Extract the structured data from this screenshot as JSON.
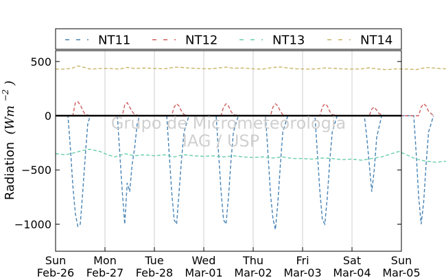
{
  "chart_data": {
    "type": "line",
    "title": "",
    "xlabel": "",
    "ylabel": "Radiation",
    "ylabel_unit_base": "(Wm",
    "ylabel_unit_exp": "−2",
    "ylabel_unit_close": ")",
    "ylim": [
      -1250,
      600
    ],
    "xlim_days": [
      0,
      7
    ],
    "y_ticks": [
      {
        "value": 500,
        "label": "500"
      },
      {
        "value": 0,
        "label": "0"
      },
      {
        "value": -500,
        "label": "−500"
      },
      {
        "value": -1000,
        "label": "−1000"
      }
    ],
    "x_ticks": [
      {
        "day": 0,
        "weekday": "Sun",
        "date": "Feb-26"
      },
      {
        "day": 1,
        "weekday": "Mon",
        "date": "Feb-27"
      },
      {
        "day": 2,
        "weekday": "Tue",
        "date": "Feb-28"
      },
      {
        "day": 3,
        "weekday": "Wed",
        "date": "Mar-01"
      },
      {
        "day": 4,
        "weekday": "Thu",
        "date": "Mar-02"
      },
      {
        "day": 5,
        "weekday": "Fri",
        "date": "Mar-03"
      },
      {
        "day": 6,
        "weekday": "Sat",
        "date": "Mar-04"
      },
      {
        "day": 7,
        "weekday": "Sun",
        "date": "Mar-05"
      }
    ],
    "grid": "vertical",
    "zero_line": true,
    "legend_position": "top",
    "series": [
      {
        "name": "NT11",
        "color": "#4682b4",
        "points": [
          [
            0.0,
            0
          ],
          [
            0.25,
            0
          ],
          [
            0.3,
            -300
          ],
          [
            0.35,
            -650
          ],
          [
            0.4,
            -900
          ],
          [
            0.45,
            -1020
          ],
          [
            0.5,
            -1000
          ],
          [
            0.55,
            -700
          ],
          [
            0.6,
            -380
          ],
          [
            0.65,
            -80
          ],
          [
            0.7,
            0
          ],
          [
            1.0,
            0
          ],
          [
            1.25,
            0
          ],
          [
            1.3,
            -350
          ],
          [
            1.35,
            -700
          ],
          [
            1.4,
            -1000
          ],
          [
            1.45,
            -620
          ],
          [
            1.5,
            -700
          ],
          [
            1.55,
            -450
          ],
          [
            1.6,
            -300
          ],
          [
            1.65,
            -80
          ],
          [
            1.7,
            0
          ],
          [
            2.0,
            0
          ],
          [
            2.25,
            0
          ],
          [
            2.3,
            -350
          ],
          [
            2.35,
            -700
          ],
          [
            2.4,
            -960
          ],
          [
            2.45,
            -1000
          ],
          [
            2.5,
            -700
          ],
          [
            2.55,
            -400
          ],
          [
            2.6,
            -150
          ],
          [
            2.7,
            0
          ],
          [
            3.0,
            0
          ],
          [
            3.25,
            0
          ],
          [
            3.3,
            -350
          ],
          [
            3.35,
            -700
          ],
          [
            3.4,
            -960
          ],
          [
            3.45,
            -1000
          ],
          [
            3.5,
            -750
          ],
          [
            3.55,
            -420
          ],
          [
            3.6,
            -150
          ],
          [
            3.7,
            0
          ],
          [
            4.0,
            0
          ],
          [
            4.25,
            0
          ],
          [
            4.3,
            -350
          ],
          [
            4.35,
            -720
          ],
          [
            4.4,
            -950
          ],
          [
            4.45,
            -1050
          ],
          [
            4.5,
            -800
          ],
          [
            4.55,
            -450
          ],
          [
            4.6,
            -150
          ],
          [
            4.7,
            0
          ],
          [
            5.0,
            0
          ],
          [
            5.25,
            0
          ],
          [
            5.3,
            -350
          ],
          [
            5.35,
            -700
          ],
          [
            5.4,
            -960
          ],
          [
            5.45,
            -1000
          ],
          [
            5.5,
            -750
          ],
          [
            5.55,
            -420
          ],
          [
            5.6,
            -150
          ],
          [
            5.7,
            0
          ],
          [
            6.0,
            0
          ],
          [
            6.25,
            0
          ],
          [
            6.3,
            -200
          ],
          [
            6.35,
            -450
          ],
          [
            6.4,
            -700
          ],
          [
            6.45,
            -500
          ],
          [
            6.5,
            -200
          ],
          [
            6.6,
            0
          ],
          [
            7.0,
            0
          ],
          [
            7.25,
            0
          ],
          [
            7.3,
            -350
          ],
          [
            7.35,
            -750
          ],
          [
            7.4,
            -1000
          ],
          [
            7.45,
            -800
          ],
          [
            7.5,
            -450
          ],
          [
            7.55,
            -150
          ],
          [
            7.65,
            0
          ]
        ]
      },
      {
        "name": "NT12",
        "color": "#cd5c5c",
        "points": [
          [
            0.0,
            0
          ],
          [
            0.35,
            0
          ],
          [
            0.4,
            120
          ],
          [
            0.45,
            130
          ],
          [
            0.5,
            100
          ],
          [
            0.55,
            50
          ],
          [
            0.6,
            10
          ],
          [
            0.7,
            0
          ],
          [
            1.0,
            0
          ],
          [
            1.35,
            0
          ],
          [
            1.4,
            100
          ],
          [
            1.45,
            120
          ],
          [
            1.5,
            80
          ],
          [
            1.55,
            40
          ],
          [
            1.6,
            10
          ],
          [
            1.7,
            0
          ],
          [
            2.0,
            0
          ],
          [
            2.35,
            0
          ],
          [
            2.4,
            80
          ],
          [
            2.45,
            110
          ],
          [
            2.5,
            90
          ],
          [
            2.55,
            40
          ],
          [
            2.6,
            10
          ],
          [
            2.7,
            0
          ],
          [
            3.0,
            0
          ],
          [
            3.35,
            0
          ],
          [
            3.4,
            80
          ],
          [
            3.45,
            110
          ],
          [
            3.5,
            90
          ],
          [
            3.55,
            40
          ],
          [
            3.6,
            10
          ],
          [
            3.7,
            0
          ],
          [
            4.0,
            0
          ],
          [
            4.35,
            0
          ],
          [
            4.4,
            80
          ],
          [
            4.45,
            110
          ],
          [
            4.5,
            90
          ],
          [
            4.55,
            40
          ],
          [
            4.6,
            10
          ],
          [
            4.7,
            0
          ],
          [
            5.0,
            0
          ],
          [
            5.35,
            0
          ],
          [
            5.4,
            80
          ],
          [
            5.45,
            110
          ],
          [
            5.5,
            90
          ],
          [
            5.55,
            40
          ],
          [
            5.6,
            10
          ],
          [
            5.7,
            0
          ],
          [
            6.0,
            0
          ],
          [
            6.35,
            0
          ],
          [
            6.4,
            60
          ],
          [
            6.45,
            80
          ],
          [
            6.5,
            50
          ],
          [
            6.55,
            20
          ],
          [
            6.65,
            0
          ],
          [
            7.0,
            0
          ],
          [
            7.35,
            0
          ],
          [
            7.4,
            80
          ],
          [
            7.45,
            110
          ],
          [
            7.5,
            90
          ],
          [
            7.55,
            40
          ],
          [
            7.65,
            0
          ]
        ]
      },
      {
        "name": "NT13",
        "color": "#66cdaa",
        "points": [
          [
            0.0,
            -350
          ],
          [
            0.2,
            -360
          ],
          [
            0.4,
            -340
          ],
          [
            0.55,
            -320
          ],
          [
            0.7,
            -310
          ],
          [
            0.9,
            -330
          ],
          [
            1.05,
            -360
          ],
          [
            1.2,
            -380
          ],
          [
            1.4,
            -350
          ],
          [
            1.6,
            -370
          ],
          [
            1.8,
            -360
          ],
          [
            2.0,
            -370
          ],
          [
            2.2,
            -360
          ],
          [
            2.4,
            -380
          ],
          [
            2.6,
            -360
          ],
          [
            2.8,
            -370
          ],
          [
            3.0,
            -375
          ],
          [
            3.2,
            -370
          ],
          [
            3.4,
            -380
          ],
          [
            3.6,
            -370
          ],
          [
            3.8,
            -380
          ],
          [
            4.0,
            -385
          ],
          [
            4.2,
            -380
          ],
          [
            4.4,
            -390
          ],
          [
            4.6,
            -380
          ],
          [
            4.8,
            -395
          ],
          [
            5.0,
            -395
          ],
          [
            5.2,
            -400
          ],
          [
            5.4,
            -390
          ],
          [
            5.6,
            -395
          ],
          [
            5.8,
            -405
          ],
          [
            6.0,
            -400
          ],
          [
            6.2,
            -410
          ],
          [
            6.4,
            -395
          ],
          [
            6.6,
            -380
          ],
          [
            6.8,
            -350
          ],
          [
            6.95,
            -330
          ],
          [
            7.1,
            -360
          ],
          [
            7.3,
            -400
          ],
          [
            7.5,
            -420
          ],
          [
            7.7,
            -430
          ],
          [
            7.9,
            -420
          ]
        ]
      },
      {
        "name": "NT14",
        "color": "#c8b464",
        "points": [
          [
            0.0,
            430
          ],
          [
            0.2,
            430
          ],
          [
            0.35,
            440
          ],
          [
            0.45,
            460
          ],
          [
            0.55,
            450
          ],
          [
            0.7,
            430
          ],
          [
            0.9,
            435
          ],
          [
            1.1,
            435
          ],
          [
            1.3,
            430
          ],
          [
            1.45,
            445
          ],
          [
            1.6,
            435
          ],
          [
            1.8,
            440
          ],
          [
            2.0,
            435
          ],
          [
            2.2,
            432
          ],
          [
            2.4,
            448
          ],
          [
            2.55,
            445
          ],
          [
            2.7,
            440
          ],
          [
            2.9,
            435
          ],
          [
            3.1,
            432
          ],
          [
            3.3,
            440
          ],
          [
            3.45,
            448
          ],
          [
            3.6,
            438
          ],
          [
            3.8,
            440
          ],
          [
            4.0,
            432
          ],
          [
            4.2,
            430
          ],
          [
            4.4,
            445
          ],
          [
            4.55,
            450
          ],
          [
            4.7,
            440
          ],
          [
            4.9,
            432
          ],
          [
            5.1,
            430
          ],
          [
            5.3,
            432
          ],
          [
            5.45,
            440
          ],
          [
            5.6,
            438
          ],
          [
            5.8,
            432
          ],
          [
            6.0,
            430
          ],
          [
            6.2,
            432
          ],
          [
            6.35,
            442
          ],
          [
            6.5,
            432
          ],
          [
            6.7,
            425
          ],
          [
            6.9,
            432
          ],
          [
            7.1,
            430
          ],
          [
            7.3,
            425
          ],
          [
            7.5,
            445
          ],
          [
            7.7,
            438
          ],
          [
            7.9,
            432
          ]
        ]
      }
    ],
    "watermark_lines": [
      "Grupo de Micrometeorologia",
      "IAG / USP"
    ]
  }
}
